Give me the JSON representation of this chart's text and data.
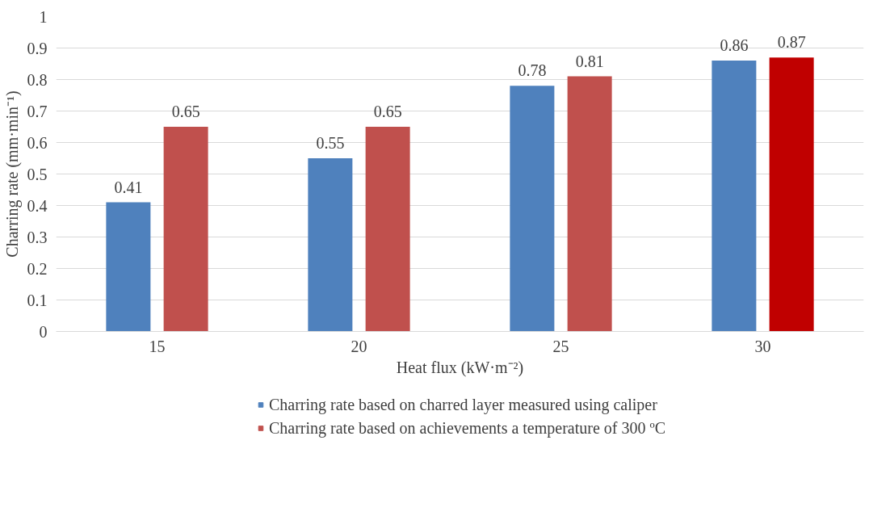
{
  "chart_data": {
    "type": "bar",
    "xlabel": "Heat flux (kW·m⁻²)",
    "ylabel": "Charring rate (mm·min⁻¹)",
    "categories": [
      "15",
      "20",
      "25",
      "30"
    ],
    "series": [
      {
        "name": "Charring rate based on charred layer measured using caliper",
        "color": "#4f81bd",
        "values": [
          0.41,
          0.55,
          0.78,
          0.86
        ]
      },
      {
        "name": "Charring rate based on achievements a temperature of 300 ºC",
        "color": "#c0504d",
        "colors": [
          "#c0504d",
          "#c0504d",
          "#c0504d",
          "#c00000"
        ],
        "values": [
          0.65,
          0.65,
          0.81,
          0.87
        ]
      }
    ],
    "ylim": [
      0,
      1
    ],
    "yticks": [
      0,
      0.1,
      0.2,
      0.3,
      0.4,
      0.5,
      0.6,
      0.7,
      0.8,
      0.9,
      1
    ],
    "grid": "y",
    "legend": "bottom",
    "data_labels": true
  }
}
